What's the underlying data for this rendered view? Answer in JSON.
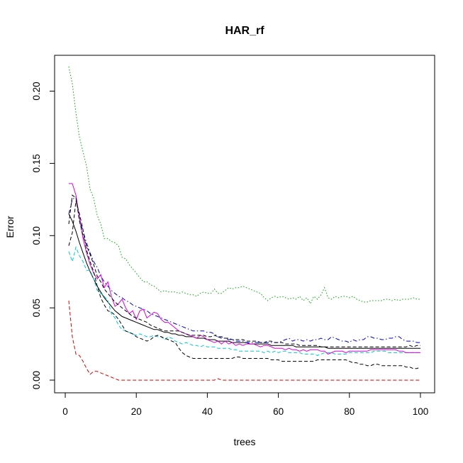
{
  "chart_data": {
    "type": "line",
    "title": "HAR_rf",
    "xlabel": "trees",
    "ylabel": "Error",
    "xlim": [
      -3,
      104
    ],
    "ylim": [
      -0.0088,
      0.2248
    ],
    "xticks": [
      0,
      20,
      40,
      60,
      80,
      100
    ],
    "yticks": [
      0.0,
      0.05,
      0.1,
      0.15,
      0.2
    ],
    "xtick_labels": [
      "0",
      "20",
      "40",
      "60",
      "80",
      "100"
    ],
    "ytick_labels": [
      "0.00",
      "0.05",
      "0.10",
      "0.15",
      "0.20"
    ],
    "grid": false,
    "legend": "none",
    "x": [
      1,
      2,
      3,
      4,
      5,
      6,
      7,
      8,
      9,
      10,
      11,
      12,
      13,
      14,
      15,
      16,
      17,
      18,
      19,
      20,
      21,
      22,
      23,
      24,
      25,
      26,
      27,
      28,
      29,
      30,
      31,
      32,
      33,
      34,
      35,
      36,
      37,
      38,
      39,
      40,
      41,
      42,
      43,
      44,
      45,
      46,
      47,
      48,
      49,
      50,
      51,
      52,
      53,
      54,
      55,
      56,
      57,
      58,
      59,
      60,
      61,
      62,
      63,
      64,
      65,
      66,
      67,
      68,
      69,
      70,
      71,
      72,
      73,
      74,
      75,
      76,
      77,
      78,
      79,
      80,
      81,
      82,
      83,
      84,
      85,
      86,
      87,
      88,
      89,
      90,
      91,
      92,
      93,
      94,
      95,
      96,
      97,
      98,
      99,
      100
    ],
    "series": [
      {
        "color": "#000000",
        "dash": "solid",
        "values": [
          0.115,
          0.11,
          0.103,
          0.095,
          0.088,
          0.081,
          0.075,
          0.07,
          0.065,
          0.061,
          0.057,
          0.054,
          0.051,
          0.048,
          0.046,
          0.044,
          0.043,
          0.042,
          0.041,
          0.04,
          0.039,
          0.038,
          0.037,
          0.036,
          0.035,
          0.035,
          0.034,
          0.033,
          0.033,
          0.032,
          0.032,
          0.031,
          0.031,
          0.03,
          0.03,
          0.03,
          0.029,
          0.029,
          0.029,
          0.028,
          0.028,
          0.028,
          0.027,
          0.027,
          0.027,
          0.027,
          0.026,
          0.026,
          0.026,
          0.026,
          0.026,
          0.025,
          0.025,
          0.025,
          0.025,
          0.025,
          0.025,
          0.024,
          0.024,
          0.024,
          0.024,
          0.024,
          0.024,
          0.024,
          0.023,
          0.023,
          0.023,
          0.023,
          0.023,
          0.023,
          0.023,
          0.023,
          0.023,
          0.022,
          0.022,
          0.022,
          0.022,
          0.022,
          0.022,
          0.022,
          0.022,
          0.022,
          0.022,
          0.022,
          0.022,
          0.022,
          0.022,
          0.022,
          0.022,
          0.022,
          0.022,
          0.022,
          0.022,
          0.022,
          0.022,
          0.022,
          0.022,
          0.022,
          0.022,
          0.022
        ]
      },
      {
        "color": "#dd0000",
        "dash": "dashed",
        "values": [
          0.055,
          0.03,
          0.018,
          0.017,
          0.013,
          0.008,
          0.004,
          0.006,
          0.006,
          0.005,
          0.004,
          0.003,
          0.002,
          0.001,
          0.0,
          0.0,
          0.0,
          0.0,
          0.0,
          0.0,
          0.0,
          0.0,
          0.0,
          0.0,
          0.0,
          0.0,
          0.0,
          0.0,
          0.0,
          0.0,
          0.0,
          0.0,
          0.0,
          0.0,
          0.0,
          0.0,
          0.0,
          0.0,
          0.0,
          0.0,
          0.0,
          0.0,
          0.001,
          0.0,
          0.0,
          0.0,
          0.0,
          0.0,
          0.0,
          0.0,
          0.0,
          0.0,
          0.0,
          0.0,
          0.0,
          0.0,
          0.0,
          0.0,
          0.0,
          0.0,
          0.0,
          0.0,
          0.0,
          0.0,
          0.0,
          0.0,
          0.0,
          0.0,
          0.0,
          0.0,
          0.0,
          0.0,
          0.0,
          0.0,
          0.0,
          0.0,
          0.0,
          0.0,
          0.0,
          0.0,
          0.0,
          0.0,
          0.0,
          0.0,
          0.0,
          0.0,
          0.0,
          0.0,
          0.0,
          0.0,
          0.0,
          0.0,
          0.0,
          0.0,
          0.0,
          0.0,
          0.0,
          0.0,
          0.0,
          0.0
        ]
      },
      {
        "color": "#00aa00",
        "dash": "dotted",
        "values": [
          0.217,
          0.205,
          0.185,
          0.168,
          0.158,
          0.148,
          0.132,
          0.126,
          0.114,
          0.108,
          0.098,
          0.098,
          0.096,
          0.095,
          0.093,
          0.085,
          0.084,
          0.08,
          0.077,
          0.074,
          0.071,
          0.068,
          0.068,
          0.066,
          0.065,
          0.063,
          0.061,
          0.062,
          0.061,
          0.061,
          0.061,
          0.06,
          0.061,
          0.06,
          0.059,
          0.059,
          0.058,
          0.06,
          0.061,
          0.06,
          0.06,
          0.063,
          0.06,
          0.06,
          0.062,
          0.064,
          0.063,
          0.064,
          0.064,
          0.065,
          0.064,
          0.063,
          0.062,
          0.061,
          0.06,
          0.057,
          0.055,
          0.057,
          0.058,
          0.057,
          0.058,
          0.057,
          0.056,
          0.057,
          0.056,
          0.058,
          0.055,
          0.057,
          0.053,
          0.058,
          0.056,
          0.059,
          0.064,
          0.057,
          0.056,
          0.058,
          0.057,
          0.058,
          0.058,
          0.057,
          0.058,
          0.056,
          0.055,
          0.054,
          0.054,
          0.055,
          0.055,
          0.055,
          0.055,
          0.056,
          0.056,
          0.055,
          0.056,
          0.055,
          0.056,
          0.056,
          0.056,
          0.057,
          0.056,
          0.056
        ]
      },
      {
        "color": "#0000cc",
        "dash": "dashdot",
        "values": [
          0.115,
          0.125,
          0.127,
          0.112,
          0.103,
          0.095,
          0.088,
          0.082,
          0.078,
          0.072,
          0.068,
          0.065,
          0.062,
          0.06,
          0.058,
          0.057,
          0.055,
          0.054,
          0.052,
          0.051,
          0.05,
          0.049,
          0.048,
          0.046,
          0.045,
          0.044,
          0.043,
          0.042,
          0.041,
          0.04,
          0.039,
          0.038,
          0.037,
          0.036,
          0.035,
          0.034,
          0.034,
          0.034,
          0.034,
          0.033,
          0.033,
          0.032,
          0.03,
          0.029,
          0.029,
          0.028,
          0.028,
          0.027,
          0.027,
          0.027,
          0.026,
          0.026,
          0.026,
          0.026,
          0.026,
          0.026,
          0.026,
          0.026,
          0.026,
          0.026,
          0.027,
          0.028,
          0.029,
          0.027,
          0.028,
          0.028,
          0.027,
          0.028,
          0.027,
          0.028,
          0.028,
          0.029,
          0.028,
          0.028,
          0.03,
          0.029,
          0.028,
          0.027,
          0.027,
          0.026,
          0.028,
          0.027,
          0.028,
          0.028,
          0.03,
          0.03,
          0.029,
          0.029,
          0.028,
          0.028,
          0.029,
          0.029,
          0.03,
          0.03,
          0.028,
          0.027,
          0.027,
          0.027,
          0.026,
          0.026
        ]
      },
      {
        "color": "#00c8d8",
        "dash": "dashed",
        "values": [
          0.089,
          0.082,
          0.092,
          0.086,
          0.082,
          0.076,
          0.076,
          0.07,
          0.062,
          0.06,
          0.058,
          0.055,
          0.046,
          0.043,
          0.038,
          0.035,
          0.034,
          0.033,
          0.032,
          0.031,
          0.032,
          0.031,
          0.03,
          0.03,
          0.031,
          0.03,
          0.03,
          0.028,
          0.03,
          0.029,
          0.027,
          0.026,
          0.025,
          0.026,
          0.025,
          0.024,
          0.024,
          0.023,
          0.024,
          0.023,
          0.023,
          0.023,
          0.022,
          0.022,
          0.022,
          0.022,
          0.021,
          0.021,
          0.02,
          0.02,
          0.02,
          0.02,
          0.02,
          0.02,
          0.02,
          0.019,
          0.02,
          0.019,
          0.02,
          0.019,
          0.02,
          0.02,
          0.019,
          0.019,
          0.019,
          0.019,
          0.018,
          0.018,
          0.018,
          0.018,
          0.017,
          0.018,
          0.019,
          0.019,
          0.019,
          0.018,
          0.018,
          0.018,
          0.018,
          0.019,
          0.019,
          0.019,
          0.019,
          0.019,
          0.019,
          0.019,
          0.02,
          0.02,
          0.02,
          0.02,
          0.019,
          0.019,
          0.019,
          0.019,
          0.019,
          0.019,
          0.019,
          0.019,
          0.019,
          0.019
        ]
      },
      {
        "color": "#dd00dd",
        "dash": "solid",
        "values": [
          0.136,
          0.136,
          0.128,
          0.112,
          0.098,
          0.088,
          0.08,
          0.074,
          0.07,
          0.073,
          0.064,
          0.068,
          0.058,
          0.051,
          0.053,
          0.056,
          0.05,
          0.046,
          0.048,
          0.042,
          0.048,
          0.049,
          0.043,
          0.045,
          0.047,
          0.046,
          0.042,
          0.04,
          0.04,
          0.038,
          0.036,
          0.034,
          0.033,
          0.032,
          0.031,
          0.03,
          0.029,
          0.031,
          0.03,
          0.028,
          0.027,
          0.026,
          0.027,
          0.025,
          0.027,
          0.025,
          0.026,
          0.024,
          0.025,
          0.024,
          0.025,
          0.025,
          0.025,
          0.024,
          0.023,
          0.024,
          0.024,
          0.023,
          0.022,
          0.022,
          0.022,
          0.021,
          0.022,
          0.021,
          0.021,
          0.02,
          0.021,
          0.02,
          0.021,
          0.021,
          0.021,
          0.02,
          0.02,
          0.018,
          0.019,
          0.02,
          0.02,
          0.02,
          0.019,
          0.02,
          0.02,
          0.02,
          0.02,
          0.02,
          0.02,
          0.021,
          0.021,
          0.021,
          0.021,
          0.021,
          0.021,
          0.021,
          0.021,
          0.02,
          0.02,
          0.019,
          0.019,
          0.019,
          0.019,
          0.019
        ]
      },
      {
        "color": "#000000",
        "dash": "dashed",
        "values": [
          0.108,
          0.128,
          0.126,
          0.11,
          0.1,
          0.093,
          0.087,
          0.08,
          0.072,
          0.068,
          0.063,
          0.06,
          0.057,
          0.054,
          0.052,
          0.05,
          0.048,
          0.046,
          0.044,
          0.043,
          0.042,
          0.041,
          0.04,
          0.038,
          0.037,
          0.036,
          0.035,
          0.034,
          0.034,
          0.034,
          0.034,
          0.034,
          0.033,
          0.032,
          0.031,
          0.031,
          0.031,
          0.031,
          0.031,
          0.03,
          0.03,
          0.031,
          0.03,
          0.03,
          0.029,
          0.029,
          0.028,
          0.028,
          0.028,
          0.028,
          0.027,
          0.027,
          0.027,
          0.027,
          0.026,
          0.026,
          0.027,
          0.027,
          0.026,
          0.026,
          0.026,
          0.025,
          0.025,
          0.025,
          0.025,
          0.024,
          0.024,
          0.024,
          0.024,
          0.024,
          0.024,
          0.023,
          0.023,
          0.023,
          0.023,
          0.023,
          0.023,
          0.023,
          0.023,
          0.023,
          0.023,
          0.023,
          0.023,
          0.023,
          0.023,
          0.023,
          0.023,
          0.023,
          0.023,
          0.023,
          0.023,
          0.023,
          0.023,
          0.023,
          0.023,
          0.023,
          0.024,
          0.023,
          0.024,
          0.024
        ]
      },
      {
        "color": "#000000",
        "dash": "dashed",
        "values": [
          0.093,
          0.102,
          0.124,
          0.115,
          0.104,
          0.09,
          0.082,
          0.075,
          0.065,
          0.057,
          0.052,
          0.048,
          0.047,
          0.045,
          0.042,
          0.038,
          0.034,
          0.033,
          0.032,
          0.03,
          0.029,
          0.028,
          0.027,
          0.028,
          0.03,
          0.031,
          0.03,
          0.029,
          0.028,
          0.027,
          0.026,
          0.022,
          0.019,
          0.017,
          0.016,
          0.015,
          0.015,
          0.015,
          0.015,
          0.015,
          0.015,
          0.015,
          0.015,
          0.015,
          0.015,
          0.015,
          0.015,
          0.016,
          0.016,
          0.015,
          0.015,
          0.015,
          0.015,
          0.015,
          0.015,
          0.015,
          0.015,
          0.014,
          0.014,
          0.014,
          0.013,
          0.013,
          0.013,
          0.013,
          0.013,
          0.013,
          0.013,
          0.013,
          0.013,
          0.013,
          0.014,
          0.014,
          0.014,
          0.014,
          0.014,
          0.014,
          0.014,
          0.014,
          0.014,
          0.013,
          0.012,
          0.012,
          0.011,
          0.011,
          0.01,
          0.01,
          0.011,
          0.011,
          0.01,
          0.01,
          0.01,
          0.01,
          0.01,
          0.01,
          0.01,
          0.009,
          0.009,
          0.008,
          0.008,
          0.009
        ]
      }
    ]
  }
}
